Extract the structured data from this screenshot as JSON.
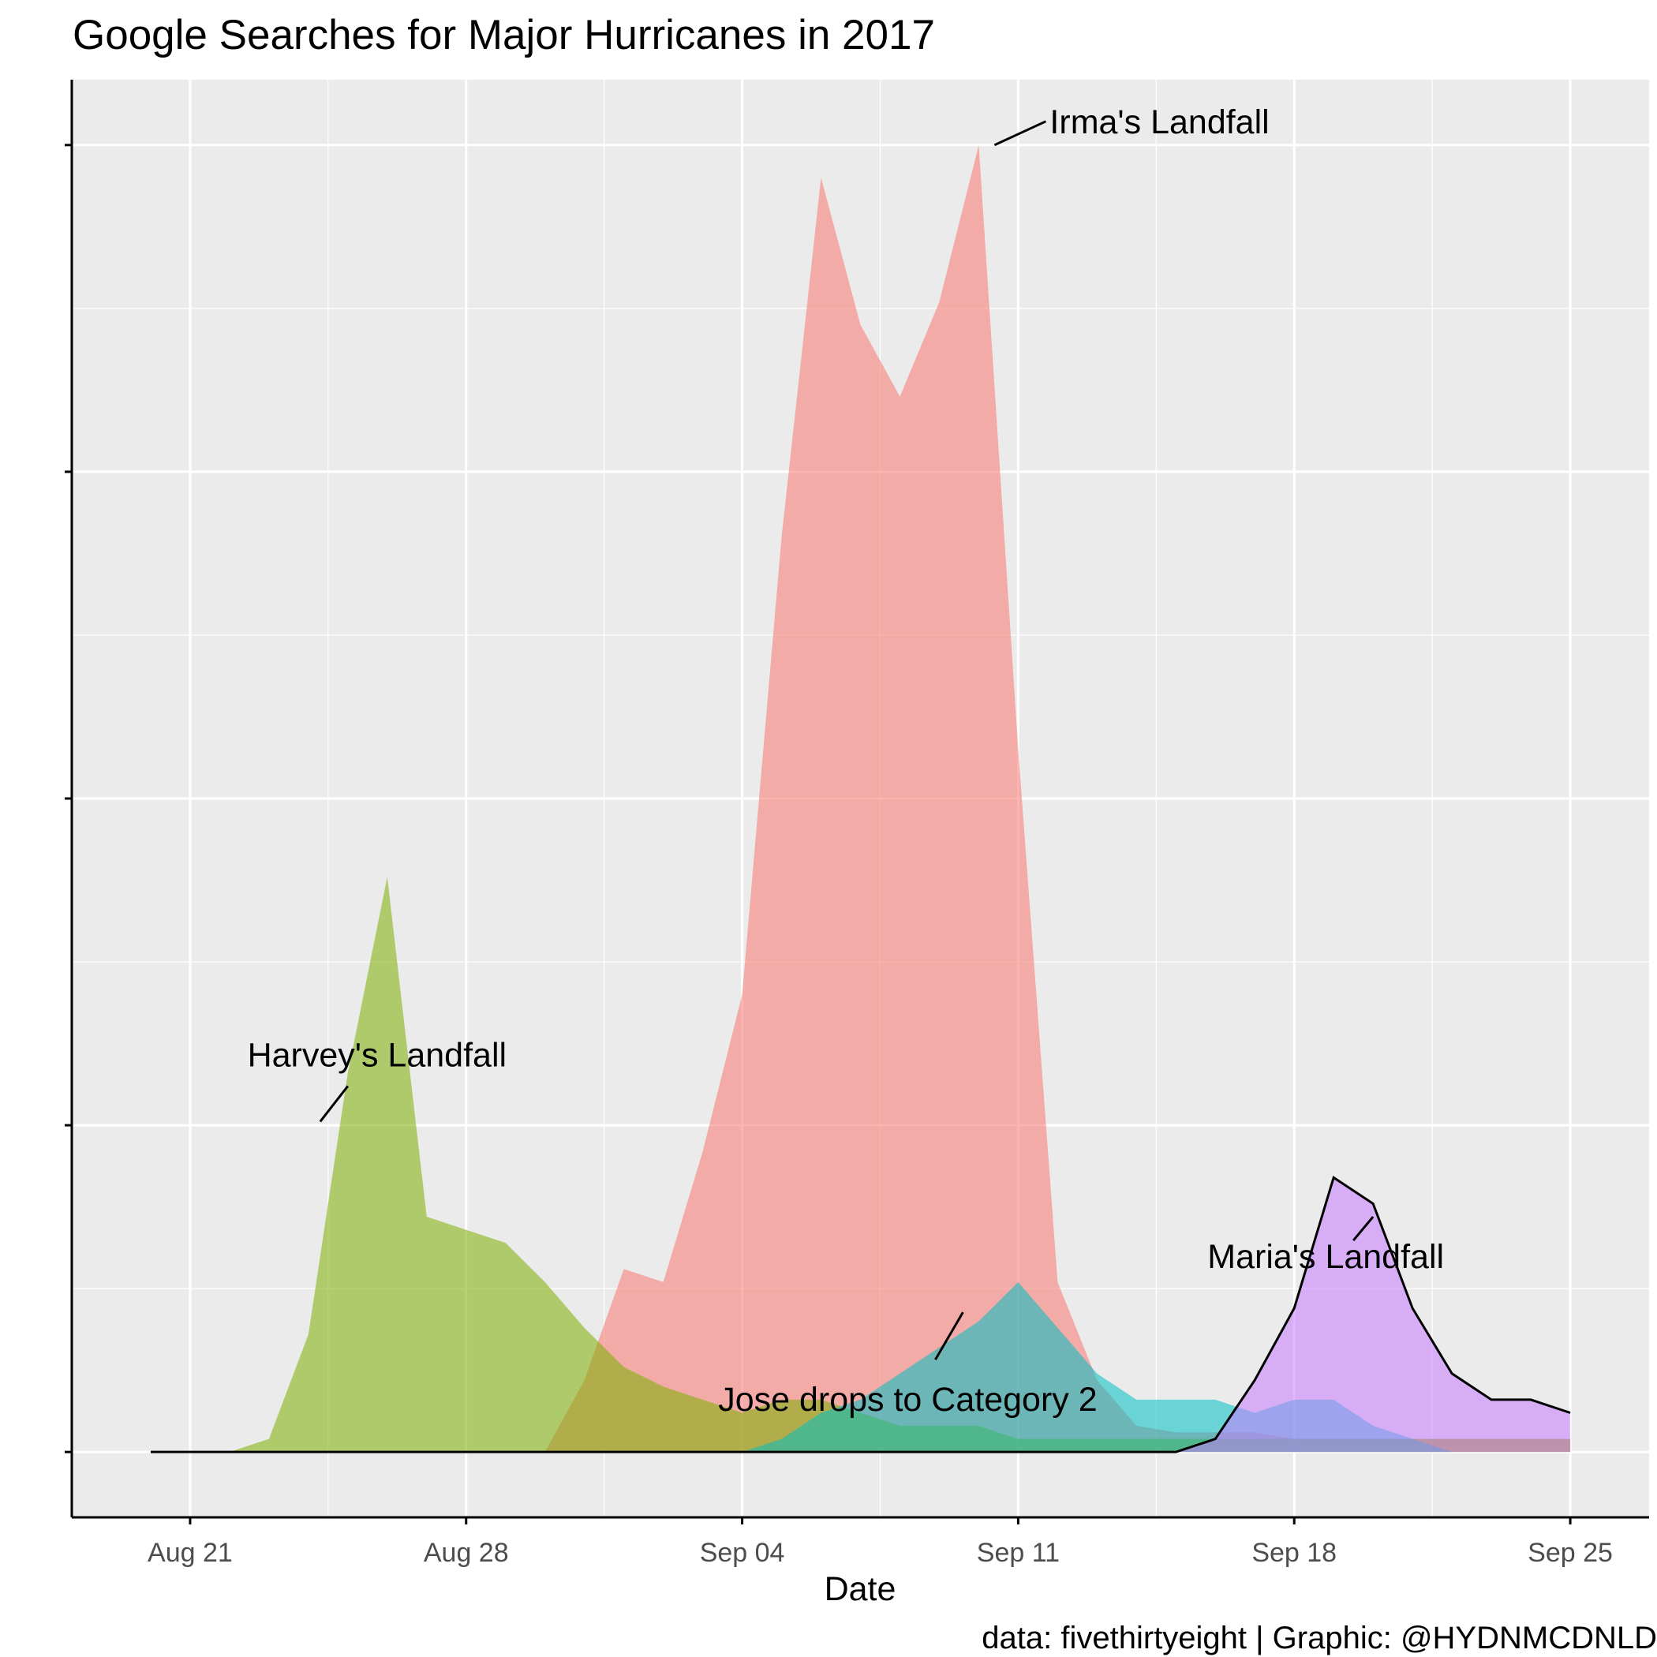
{
  "title": "Google Searches for Major Hurricanes in 2017",
  "caption": "data: fivethirtyeight | Graphic: @HYDNMCDNLD",
  "chart_data": {
    "type": "area",
    "title": "Google Searches for Major Hurricanes in 2017",
    "xlabel": "Date",
    "ylabel": "",
    "x_tick_labels": [
      "Aug 21",
      "Aug 28",
      "Sep 04",
      "Sep 11",
      "Sep 18",
      "Sep 25"
    ],
    "x_ticks": [
      "2017-08-21",
      "2017-08-28",
      "2017-09-04",
      "2017-09-11",
      "2017-09-18",
      "2017-09-25"
    ],
    "xlim": [
      "2017-08-18",
      "2017-09-27"
    ],
    "ylim": [
      -0.2,
      4.2
    ],
    "y_ticks": [
      0,
      1,
      2,
      3,
      4
    ],
    "y_tick_labels_shown": false,
    "grid": true,
    "legend": "none",
    "dates": [
      "2017-08-20",
      "2017-08-21",
      "2017-08-22",
      "2017-08-23",
      "2017-08-24",
      "2017-08-25",
      "2017-08-26",
      "2017-08-27",
      "2017-08-28",
      "2017-08-29",
      "2017-08-30",
      "2017-08-31",
      "2017-09-01",
      "2017-09-02",
      "2017-09-03",
      "2017-09-04",
      "2017-09-05",
      "2017-09-06",
      "2017-09-07",
      "2017-09-08",
      "2017-09-09",
      "2017-09-10",
      "2017-09-11",
      "2017-09-12",
      "2017-09-13",
      "2017-09-14",
      "2017-09-15",
      "2017-09-16",
      "2017-09-17",
      "2017-09-18",
      "2017-09-19",
      "2017-09-20",
      "2017-09-21",
      "2017-09-22",
      "2017-09-23",
      "2017-09-24",
      "2017-09-25"
    ],
    "series": [
      {
        "color": "#F8766D",
        "outlined": false,
        "values": [
          0,
          0,
          0,
          0,
          0,
          0,
          0,
          0,
          0,
          0,
          0,
          0.22,
          0.56,
          0.52,
          0.92,
          1.4,
          2.8,
          3.9,
          3.45,
          3.23,
          3.52,
          4.0,
          2.15,
          0.52,
          0.22,
          0.08,
          0.06,
          0.06,
          0.06,
          0.04,
          0.04,
          0.04,
          0.04,
          0.04,
          0.04,
          0.04,
          0.04
        ]
      },
      {
        "color": "#7CAE00",
        "outlined": false,
        "values": [
          0,
          0,
          0,
          0.04,
          0.36,
          1.16,
          1.76,
          0.72,
          0.68,
          0.64,
          0.52,
          0.38,
          0.26,
          0.2,
          0.16,
          0.12,
          0.16,
          0.16,
          0.12,
          0.08,
          0.08,
          0.08,
          0.04,
          0.04,
          0.04,
          0.04,
          0.04,
          0.04,
          0.04,
          0.04,
          0.04,
          0.04,
          0.04,
          0.04,
          0.04,
          0.04,
          0.04
        ]
      },
      {
        "color": "#00BFC4",
        "outlined": false,
        "values": [
          0,
          0,
          0,
          0,
          0,
          0,
          0,
          0,
          0,
          0,
          0,
          0,
          0,
          0,
          0,
          0,
          0.04,
          0.12,
          0.16,
          0.24,
          0.32,
          0.4,
          0.52,
          0.38,
          0.24,
          0.16,
          0.16,
          0.16,
          0.12,
          0.16,
          0.16,
          0.08,
          0.04,
          0,
          0,
          0,
          0
        ]
      },
      {
        "color": "#C77CFF",
        "outlined": true,
        "values": [
          0,
          0,
          0,
          0,
          0,
          0,
          0,
          0,
          0,
          0,
          0,
          0,
          0,
          0,
          0,
          0,
          0,
          0,
          0,
          0,
          0,
          0,
          0,
          0,
          0,
          0,
          0,
          0.04,
          0.22,
          0.44,
          0.84,
          0.76,
          0.44,
          0.24,
          0.16,
          0.16,
          0.12
        ]
      }
    ],
    "annotations": [
      {
        "text": "Harvey's Landfall",
        "point_date": "2017-08-25",
        "point_y": 1.12
      },
      {
        "text": "Irma's Landfall",
        "point_date": "2017-09-10",
        "point_y": 4.0
      },
      {
        "text": "Jose drops to Category 2",
        "point_date": "2017-09-10",
        "point_y": 0.5
      },
      {
        "text": "Maria's Landfall",
        "point_date": "2017-09-20",
        "point_y": 0.72
      }
    ]
  }
}
